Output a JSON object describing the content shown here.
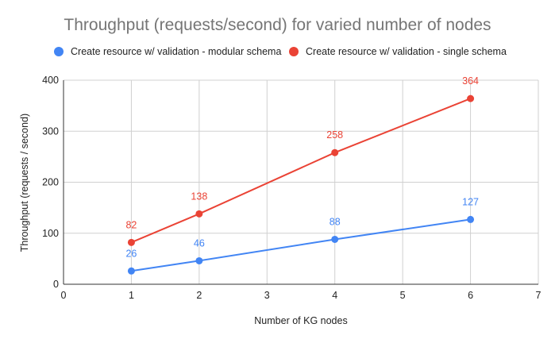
{
  "chart_data": {
    "type": "line",
    "title": "Throughput (requests/second) for varied number of nodes",
    "xlabel": "Number of KG nodes",
    "ylabel": "Throughput (requests / second)",
    "xlim": [
      0,
      7
    ],
    "ylim": [
      0,
      400
    ],
    "xticks": [
      0,
      1,
      2,
      3,
      4,
      5,
      6,
      7
    ],
    "yticks": [
      0,
      100,
      200,
      300,
      400
    ],
    "grid": true,
    "legend_position": "top",
    "series": [
      {
        "name": "Create resource w/ validation - modular schema",
        "color": "#4285f4",
        "x": [
          1,
          2,
          4,
          6
        ],
        "y": [
          26,
          46,
          88,
          127
        ]
      },
      {
        "name": "Create resource w/ validation - single schema",
        "color": "#ea4335",
        "x": [
          1,
          2,
          4,
          6
        ],
        "y": [
          82,
          138,
          258,
          364
        ]
      }
    ]
  }
}
